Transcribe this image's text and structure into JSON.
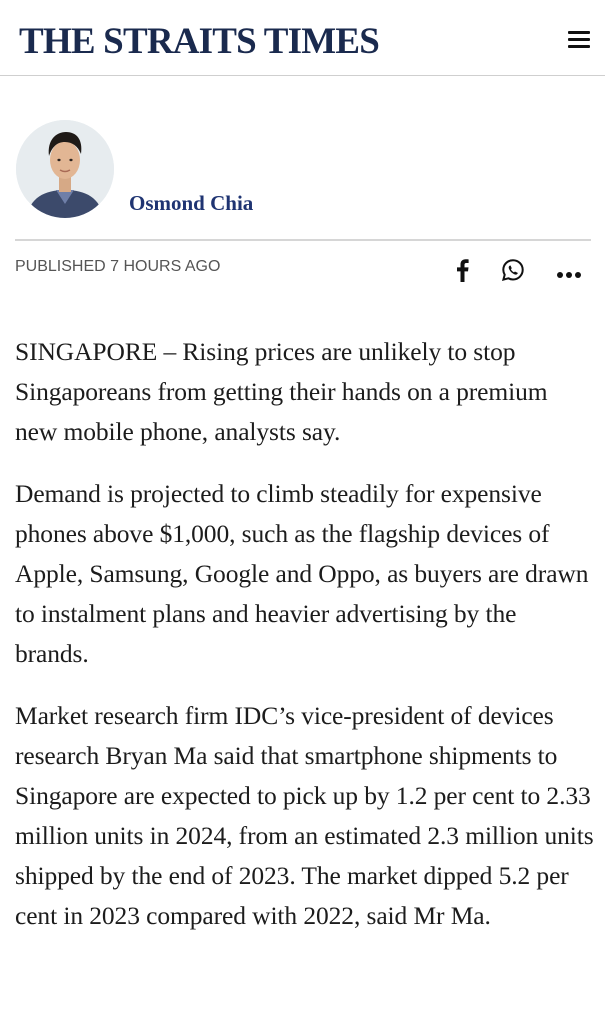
{
  "header": {
    "logo": "THE STRAITS TIMES",
    "menu_icon": "hamburger-menu-icon"
  },
  "author": {
    "name": "Osmond Chia",
    "avatar_icon": "author-avatar"
  },
  "meta": {
    "published": "PUBLISHED 7 HOURS AGO",
    "share_icons": [
      "facebook-icon",
      "whatsapp-icon",
      "more-icon"
    ]
  },
  "article": {
    "paragraphs": [
      "SINGAPORE – Rising prices are unlikely to stop Singaporeans from getting their hands on a premium new mobile phone, analysts say.",
      "Demand is projected to climb steadily for expensive phones above $1,000, such as the flagship devices of Apple, Samsung, Google and Oppo, as buyers are drawn to instalment plans and heavier advertising by the brands.",
      "Market research firm IDC’s vice-president of devices research Bryan Ma said that smartphone shipments to Singapore are expected to pick up by 1.2 per cent to 2.33 million units in 2024, from an estimated 2.3 million units shipped by the end of 2023. The market dipped 5.2 per cent in 2023 compared with 2022, said Mr Ma."
    ]
  },
  "colors": {
    "logo": "#1a2a4e",
    "author_link": "#1f3472",
    "meta_text": "#555555",
    "body_text": "#1c1c1c",
    "divider": "#d6d6d6"
  }
}
